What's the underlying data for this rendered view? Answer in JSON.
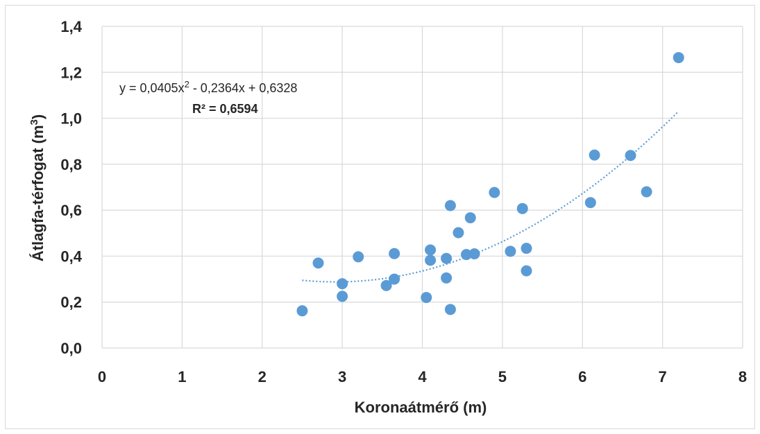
{
  "chart_data": {
    "type": "scatter",
    "xlabel": "Koronaátmérő (m)",
    "ylabel_main": "Átlagfa-térfogat (m",
    "ylabel_sup": "3",
    "ylabel_end": ")",
    "xlim": [
      0,
      8
    ],
    "ylim": [
      0,
      1.4
    ],
    "x_ticks": [
      0,
      1,
      2,
      3,
      4,
      5,
      6,
      7,
      8
    ],
    "x_tick_labels": [
      "0",
      "1",
      "2",
      "3",
      "4",
      "5",
      "6",
      "7",
      "8"
    ],
    "y_ticks": [
      0,
      0.2,
      0.4,
      0.6,
      0.8,
      1.0,
      1.2,
      1.4
    ],
    "y_tick_labels": [
      "0,0",
      "0,2",
      "0,4",
      "0,6",
      "0,8",
      "1,0",
      "1,2",
      "1,4"
    ],
    "grid": true,
    "point_color": "#5b9bd5",
    "trend_color": "#5b9bd5",
    "points": [
      {
        "x": 2.5,
        "y": 0.162
      },
      {
        "x": 2.7,
        "y": 0.37
      },
      {
        "x": 3.0,
        "y": 0.28
      },
      {
        "x": 3.0,
        "y": 0.225
      },
      {
        "x": 3.2,
        "y": 0.397
      },
      {
        "x": 3.55,
        "y": 0.272
      },
      {
        "x": 3.65,
        "y": 0.411
      },
      {
        "x": 3.65,
        "y": 0.3
      },
      {
        "x": 4.05,
        "y": 0.22
      },
      {
        "x": 4.1,
        "y": 0.427
      },
      {
        "x": 4.1,
        "y": 0.382
      },
      {
        "x": 4.3,
        "y": 0.39
      },
      {
        "x": 4.3,
        "y": 0.305
      },
      {
        "x": 4.35,
        "y": 0.168
      },
      {
        "x": 4.35,
        "y": 0.62
      },
      {
        "x": 4.45,
        "y": 0.502
      },
      {
        "x": 4.55,
        "y": 0.407
      },
      {
        "x": 4.6,
        "y": 0.567
      },
      {
        "x": 4.65,
        "y": 0.41
      },
      {
        "x": 4.9,
        "y": 0.677
      },
      {
        "x": 5.1,
        "y": 0.421
      },
      {
        "x": 5.25,
        "y": 0.607
      },
      {
        "x": 5.3,
        "y": 0.434
      },
      {
        "x": 5.3,
        "y": 0.336
      },
      {
        "x": 6.1,
        "y": 0.633
      },
      {
        "x": 6.15,
        "y": 0.84
      },
      {
        "x": 6.6,
        "y": 0.838
      },
      {
        "x": 6.8,
        "y": 0.68
      },
      {
        "x": 7.2,
        "y": 1.264
      }
    ],
    "trendline": {
      "type": "polynomial",
      "coefficients": [
        0.0405,
        -0.2364,
        0.6328
      ],
      "x_range": [
        2.5,
        7.2
      ],
      "equation_prefix": "y = 0,0405x",
      "equation_sup": "2",
      "equation_suffix": " - 0,2364x + 0,6328",
      "r2_label": "R² = 0,6594"
    }
  }
}
